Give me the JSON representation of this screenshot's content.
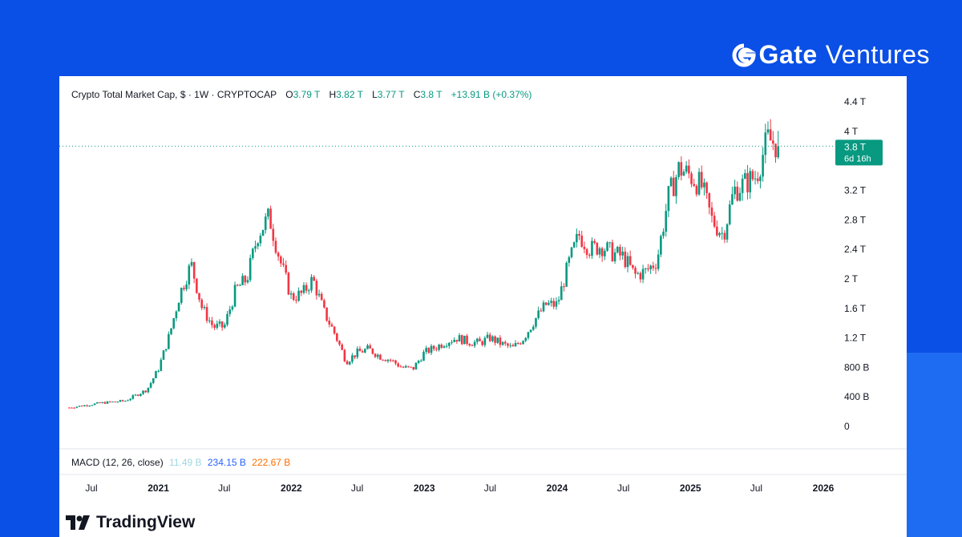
{
  "brand": {
    "name_bold": "Gate",
    "name_light": "Ventures",
    "logo_icon": "gate-logo-icon"
  },
  "header": {
    "title": "Crypto Total Market Cap, $ · 1W · CRYPTOCAP",
    "o_label": "O",
    "o_value": "3.79 T",
    "h_label": "H",
    "h_value": "3.82 T",
    "l_label": "L",
    "l_value": "3.77 T",
    "c_label": "C",
    "c_value": "3.8 T",
    "change": "+13.91 B (+0.37%)"
  },
  "macd": {
    "label": "MACD (12, 26, close)",
    "v1": "11.49 B",
    "v2": "234.15 B",
    "v3": "222.67 B"
  },
  "price_badge": {
    "value": "3.8 T",
    "countdown": "6d 16h"
  },
  "footer": {
    "logo_text": "TradingView",
    "logo_icon": "tradingview-logo-icon"
  },
  "colors": {
    "up": "#089981",
    "down": "#f23645",
    "background": "#0a4fe6"
  },
  "chart_data": {
    "type": "candlestick",
    "title": "Crypto Total Market Cap, $ · 1W · CRYPTOCAP",
    "interval": "1W",
    "y_unit": "USD",
    "y_ticks": [
      "4.4 T",
      "4 T",
      "3.2 T",
      "2.8 T",
      "2.4 T",
      "2 T",
      "1.6 T",
      "1.2 T",
      "800 B",
      "400 B",
      "0"
    ],
    "y_tick_values": [
      4400,
      4000,
      3200,
      2800,
      2400,
      2000,
      1600,
      1200,
      800,
      400,
      0
    ],
    "x_ticks": [
      "Jul",
      "2021",
      "Jul",
      "2022",
      "Jul",
      "2023",
      "Jul",
      "2024",
      "Jul",
      "2025",
      "Jul",
      "2026"
    ],
    "x_tick_dates": [
      "2020-07",
      "2021-01",
      "2021-07",
      "2022-01",
      "2022-07",
      "2023-01",
      "2023-07",
      "2024-01",
      "2024-07",
      "2025-01",
      "2025-07",
      "2026-01"
    ],
    "last_close": 3800,
    "ylim": [
      0,
      4400
    ],
    "grid": false,
    "series_key_points": {
      "date": [
        "2020-05",
        "2020-08",
        "2020-10",
        "2020-12",
        "2021-01",
        "2021-02",
        "2021-03",
        "2021-04",
        "2021-05",
        "2021-06",
        "2021-07",
        "2021-08",
        "2021-09",
        "2021-10",
        "2021-11",
        "2021-12",
        "2022-01",
        "2022-02",
        "2022-03",
        "2022-04",
        "2022-05",
        "2022-06",
        "2022-07",
        "2022-08",
        "2022-09",
        "2022-10",
        "2022-11",
        "2022-12",
        "2023-01",
        "2023-02",
        "2023-03",
        "2023-04",
        "2023-05",
        "2023-06",
        "2023-07",
        "2023-08",
        "2023-09",
        "2023-10",
        "2023-11",
        "2023-12",
        "2024-01",
        "2024-02",
        "2024-03",
        "2024-04",
        "2024-05",
        "2024-06",
        "2024-07",
        "2024-08",
        "2024-09",
        "2024-10",
        "2024-11",
        "2024-12",
        "2025-01",
        "2025-02",
        "2025-03",
        "2025-04",
        "2025-05",
        "2025-06",
        "2025-07",
        "2025-08",
        "2025-09"
      ],
      "close": [
        255,
        320,
        345,
        500,
        780,
        1250,
        1800,
        2200,
        1600,
        1350,
        1350,
        1850,
        2000,
        2600,
        2850,
        2250,
        1750,
        1800,
        2000,
        1550,
        1250,
        880,
        1000,
        1050,
        950,
        900,
        800,
        780,
        1000,
        1070,
        1150,
        1200,
        1150,
        1130,
        1200,
        1120,
        1060,
        1200,
        1450,
        1650,
        1650,
        2200,
        2600,
        2400,
        2450,
        2350,
        2300,
        2050,
        2100,
        2250,
        3100,
        3500,
        3400,
        3250,
        2800,
        2600,
        3200,
        3300,
        3400,
        3900,
        3800
      ]
    }
  }
}
